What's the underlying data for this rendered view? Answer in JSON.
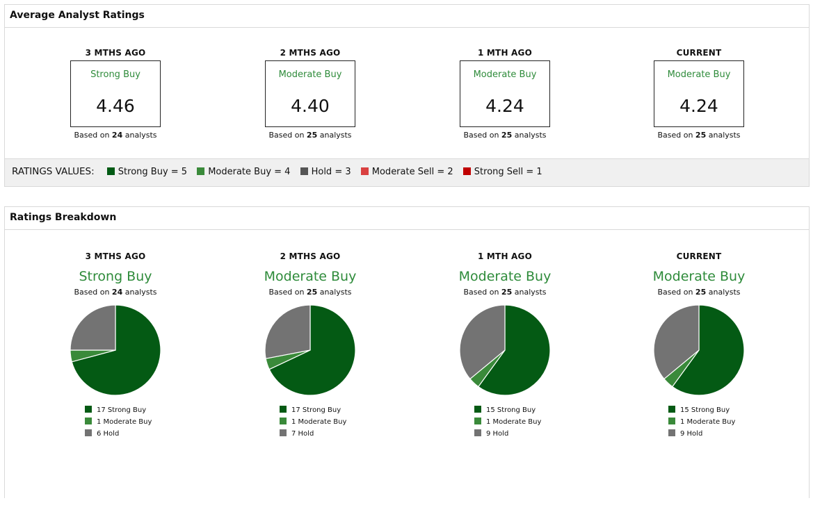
{
  "average": {
    "title": "Average Analyst Ratings",
    "columns": [
      {
        "period": "3 MTHS AGO",
        "label": "Strong Buy",
        "score": "4.46",
        "count": "24"
      },
      {
        "period": "2 MTHS AGO",
        "label": "Moderate Buy",
        "score": "4.40",
        "count": "25"
      },
      {
        "period": "1 MTH AGO",
        "label": "Moderate Buy",
        "score": "4.24",
        "count": "25"
      },
      {
        "period": "CURRENT",
        "label": "Moderate Buy",
        "score": "4.24",
        "count": "25"
      }
    ],
    "based_prefix": "Based on",
    "based_suffix": "analysts"
  },
  "ratings_values": {
    "title": "RATINGS VALUES:",
    "items": [
      {
        "label": "Strong Buy = 5",
        "color": "#005a14"
      },
      {
        "label": "Moderate Buy = 4",
        "color": "#3a8a3a"
      },
      {
        "label": "Hold = 3",
        "color": "#555555"
      },
      {
        "label": "Moderate Sell = 2",
        "color": "#d94040"
      },
      {
        "label": "Strong Sell = 1",
        "color": "#c00000"
      }
    ]
  },
  "breakdown": {
    "title": "Ratings Breakdown",
    "columns": [
      {
        "period": "3 MTHS AGO",
        "label": "Strong Buy",
        "count": "24",
        "legend": [
          "17 Strong Buy",
          "1 Moderate Buy",
          "6 Hold"
        ]
      },
      {
        "period": "2 MTHS AGO",
        "label": "Moderate Buy",
        "count": "25",
        "legend": [
          "17 Strong Buy",
          "1 Moderate Buy",
          "7 Hold"
        ]
      },
      {
        "period": "1 MTH AGO",
        "label": "Moderate Buy",
        "count": "25",
        "legend": [
          "15 Strong Buy",
          "1 Moderate Buy",
          "9 Hold"
        ]
      },
      {
        "period": "CURRENT",
        "label": "Moderate Buy",
        "count": "25",
        "legend": [
          "15 Strong Buy",
          "1 Moderate Buy",
          "9 Hold"
        ]
      }
    ]
  },
  "chart_data": [
    {
      "type": "pie",
      "categories": [
        "Strong Buy",
        "Moderate Buy",
        "Hold"
      ],
      "values": [
        17,
        1,
        6
      ],
      "colors": [
        "#045a14",
        "#3a8a3a",
        "#737373"
      ]
    },
    {
      "type": "pie",
      "categories": [
        "Strong Buy",
        "Moderate Buy",
        "Hold"
      ],
      "values": [
        17,
        1,
        7
      ],
      "colors": [
        "#045a14",
        "#3a8a3a",
        "#737373"
      ]
    },
    {
      "type": "pie",
      "categories": [
        "Strong Buy",
        "Moderate Buy",
        "Hold"
      ],
      "values": [
        15,
        1,
        9
      ],
      "colors": [
        "#045a14",
        "#3a8a3a",
        "#737373"
      ]
    },
    {
      "type": "pie",
      "categories": [
        "Strong Buy",
        "Moderate Buy",
        "Hold"
      ],
      "values": [
        15,
        1,
        9
      ],
      "colors": [
        "#045a14",
        "#3a8a3a",
        "#737373"
      ]
    }
  ]
}
